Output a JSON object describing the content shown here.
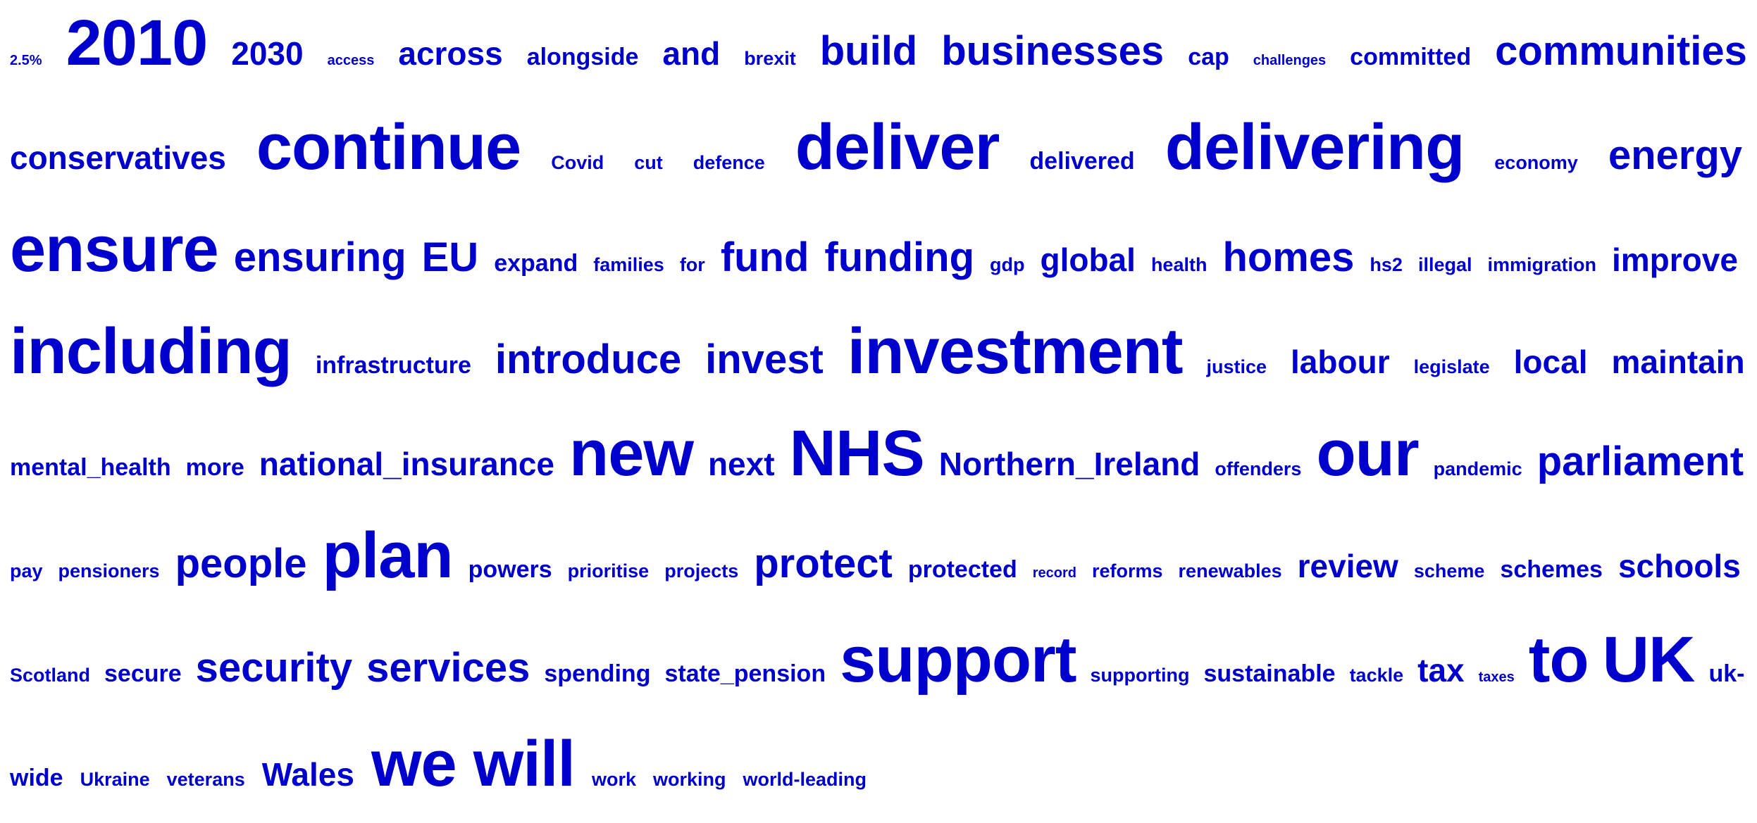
{
  "word_cloud": {
    "color": "#0000cc",
    "rows": [
      [
        {
          "text": "2.5%",
          "weight": 1
        },
        {
          "text": "2010",
          "weight": 8
        },
        {
          "text": "2030",
          "weight": 4
        },
        {
          "text": "access",
          "weight": 1
        },
        {
          "text": "across",
          "weight": 4
        },
        {
          "text": "alongside",
          "weight": 3
        },
        {
          "text": "and",
          "weight": 4
        },
        {
          "text": "brexit",
          "weight": 2
        },
        {
          "text": "build",
          "weight": 5
        },
        {
          "text": "businesses",
          "weight": 5
        },
        {
          "text": "cap",
          "weight": 3
        },
        {
          "text": "challenges",
          "weight": 1
        },
        {
          "text": "committed",
          "weight": 3
        },
        {
          "text": "communities",
          "weight": 5
        }
      ],
      [
        {
          "text": "conservatives",
          "weight": 4
        },
        {
          "text": "continue",
          "weight": 8
        },
        {
          "text": "Covid",
          "weight": 2
        },
        {
          "text": "cut",
          "weight": 2
        },
        {
          "text": "defence",
          "weight": 2
        },
        {
          "text": "deliver",
          "weight": 8
        },
        {
          "text": "delivered",
          "weight": 3
        },
        {
          "text": "delivering",
          "weight": 8
        },
        {
          "text": "economy",
          "weight": 2
        },
        {
          "text": "energy",
          "weight": 5
        }
      ],
      [
        {
          "text": "ensure",
          "weight": 8
        },
        {
          "text": "ensuring",
          "weight": 5
        },
        {
          "text": "EU",
          "weight": 5
        },
        {
          "text": "expand",
          "weight": 3
        },
        {
          "text": "families",
          "weight": 2
        },
        {
          "text": "for",
          "weight": 2
        },
        {
          "text": "fund",
          "weight": 5
        },
        {
          "text": "funding",
          "weight": 5
        },
        {
          "text": "gdp",
          "weight": 2
        },
        {
          "text": "global",
          "weight": 4
        },
        {
          "text": "health",
          "weight": 2
        },
        {
          "text": "homes",
          "weight": 5
        },
        {
          "text": "hs2",
          "weight": 2
        },
        {
          "text": "illegal",
          "weight": 2
        },
        {
          "text": "immigration",
          "weight": 2
        },
        {
          "text": "improve",
          "weight": 4
        }
      ],
      [
        {
          "text": "including",
          "weight": 8
        },
        {
          "text": "infrastructure",
          "weight": 3
        },
        {
          "text": "introduce",
          "weight": 5
        },
        {
          "text": "invest",
          "weight": 5
        },
        {
          "text": "investment",
          "weight": 8
        },
        {
          "text": "justice",
          "weight": 2
        },
        {
          "text": "labour",
          "weight": 4
        },
        {
          "text": "legislate",
          "weight": 2
        },
        {
          "text": "local",
          "weight": 4
        },
        {
          "text": "maintain",
          "weight": 4
        }
      ],
      [
        {
          "text": "mental_health",
          "weight": 3
        },
        {
          "text": "more",
          "weight": 3
        },
        {
          "text": "national_insurance",
          "weight": 4
        },
        {
          "text": "new",
          "weight": 8
        },
        {
          "text": "next",
          "weight": 4
        },
        {
          "text": "NHS",
          "weight": 8
        },
        {
          "text": "Northern_Ireland",
          "weight": 4
        },
        {
          "text": "offenders",
          "weight": 2
        },
        {
          "text": "our",
          "weight": 8
        },
        {
          "text": "pandemic",
          "weight": 2
        },
        {
          "text": "parliament",
          "weight": 5
        }
      ],
      [
        {
          "text": "pay",
          "weight": 2
        },
        {
          "text": "pensioners",
          "weight": 2
        },
        {
          "text": "people",
          "weight": 5
        },
        {
          "text": "plan",
          "weight": 8
        },
        {
          "text": "powers",
          "weight": 3
        },
        {
          "text": "prioritise",
          "weight": 2
        },
        {
          "text": "projects",
          "weight": 2
        },
        {
          "text": "protect",
          "weight": 5
        },
        {
          "text": "protected",
          "weight": 3
        },
        {
          "text": "record",
          "weight": 1
        },
        {
          "text": "reforms",
          "weight": 2
        },
        {
          "text": "renewables",
          "weight": 2
        },
        {
          "text": "review",
          "weight": 4
        },
        {
          "text": "scheme",
          "weight": 2
        },
        {
          "text": "schemes",
          "weight": 3
        },
        {
          "text": "schools",
          "weight": 4
        }
      ],
      [
        {
          "text": "Scotland",
          "weight": 2
        },
        {
          "text": "secure",
          "weight": 3
        },
        {
          "text": "security",
          "weight": 5
        },
        {
          "text": "services",
          "weight": 5
        },
        {
          "text": "spending",
          "weight": 3
        },
        {
          "text": "state_pension",
          "weight": 3
        },
        {
          "text": "support",
          "weight": 8
        },
        {
          "text": "supporting",
          "weight": 2
        },
        {
          "text": "sustainable",
          "weight": 3
        },
        {
          "text": "tackle",
          "weight": 2
        },
        {
          "text": "tax",
          "weight": 4
        },
        {
          "text": "taxes",
          "weight": 1
        },
        {
          "text": "to",
          "weight": 8
        },
        {
          "text": "UK",
          "weight": 8
        },
        {
          "text": "uk-",
          "weight": 3
        }
      ],
      [
        {
          "text": "wide",
          "weight": 3
        },
        {
          "text": "Ukraine",
          "weight": 2
        },
        {
          "text": "veterans",
          "weight": 2
        },
        {
          "text": "Wales",
          "weight": 4
        },
        {
          "text": "we",
          "weight": 8
        },
        {
          "text": "will",
          "weight": 8
        },
        {
          "text": "work",
          "weight": 2
        },
        {
          "text": "working",
          "weight": 2
        },
        {
          "text": "world-leading",
          "weight": 2
        }
      ]
    ]
  }
}
